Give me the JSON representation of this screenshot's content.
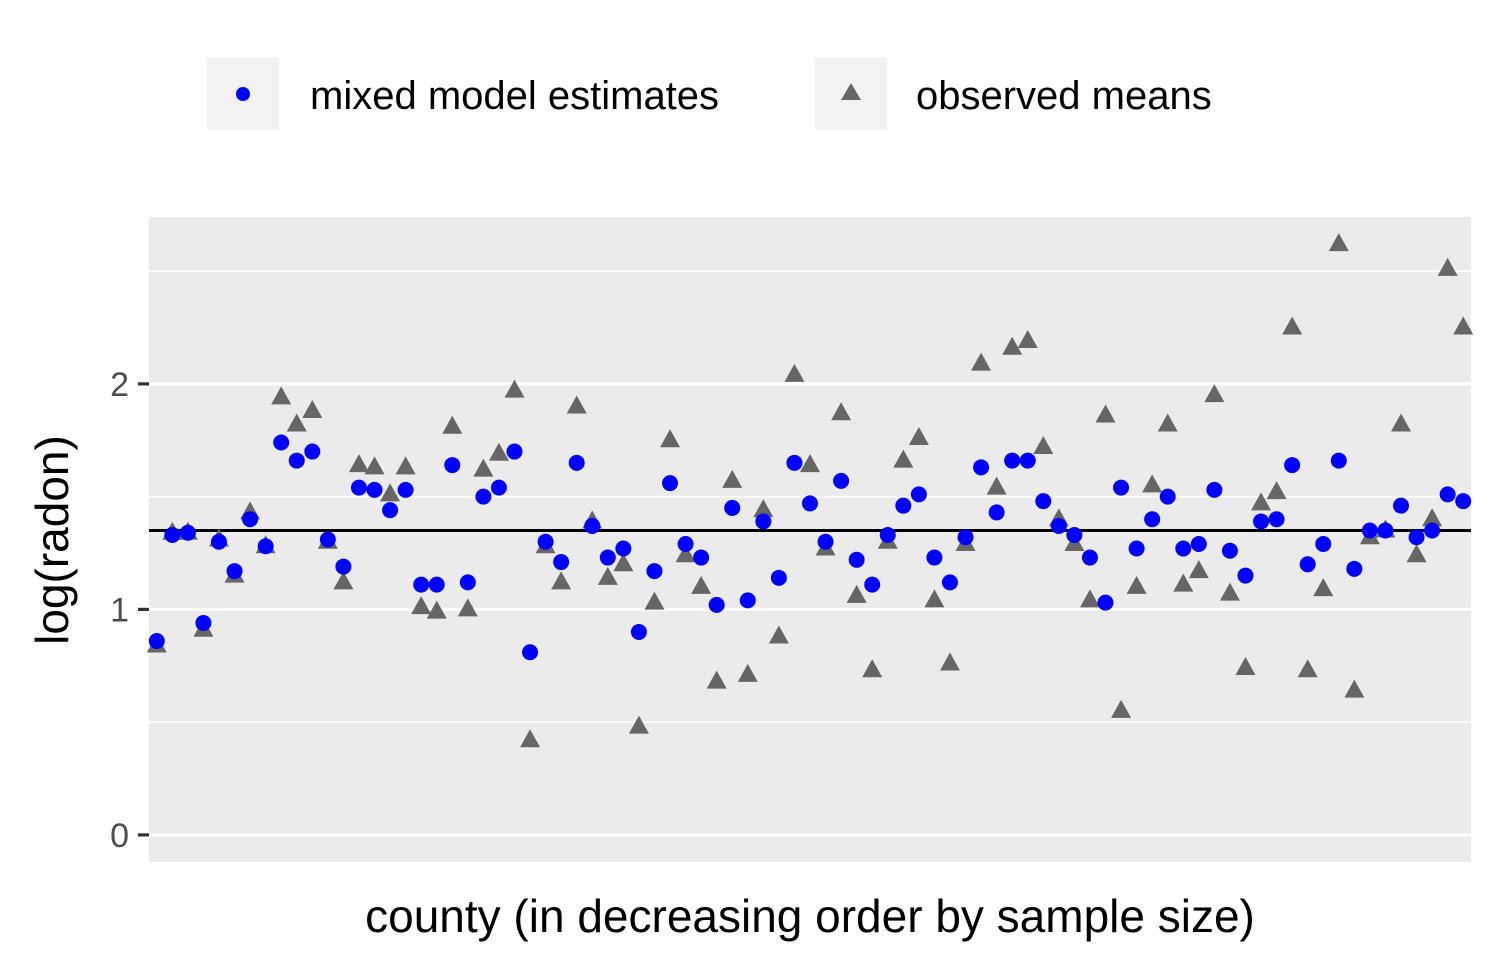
{
  "chart_data": {
    "type": "scatter",
    "xlabel": "county (in decreasing order by sample size)",
    "ylabel": "log(radon)",
    "y_ticks": [
      0,
      1,
      2
    ],
    "y_tick_labels": [
      "0",
      "1",
      "2"
    ],
    "ylim": [
      -0.12,
      2.74
    ],
    "xlim": [
      0.5,
      85.5
    ],
    "grid": true,
    "legend_position": "top",
    "reference_line": {
      "y": 1.35,
      "color": "#000000"
    },
    "series": [
      {
        "name": "mixed model estimates",
        "marker": "circle",
        "color": "#0000ff",
        "x": [
          1,
          2,
          3,
          4,
          5,
          6,
          7,
          8,
          9,
          10,
          11,
          12,
          13,
          14,
          15,
          16,
          17,
          18,
          19,
          20,
          21,
          22,
          23,
          24,
          25,
          26,
          27,
          28,
          29,
          30,
          31,
          32,
          33,
          34,
          35,
          36,
          37,
          38,
          39,
          40,
          41,
          42,
          43,
          44,
          45,
          46,
          47,
          48,
          49,
          50,
          51,
          52,
          53,
          54,
          55,
          56,
          57,
          58,
          59,
          60,
          61,
          62,
          63,
          64,
          65,
          66,
          67,
          68,
          69,
          70,
          71,
          72,
          73,
          74,
          75,
          76,
          77,
          78,
          79,
          80,
          81,
          82,
          83,
          84,
          85
        ],
        "values": [
          0.86,
          1.33,
          1.34,
          0.94,
          1.3,
          1.17,
          1.4,
          1.28,
          1.74,
          1.66,
          1.7,
          1.31,
          1.19,
          1.54,
          1.53,
          1.44,
          1.53,
          1.11,
          1.11,
          1.64,
          1.12,
          1.5,
          1.54,
          1.7,
          0.81,
          1.3,
          1.21,
          1.65,
          1.37,
          1.23,
          1.27,
          0.9,
          1.17,
          1.56,
          1.29,
          1.23,
          1.02,
          1.45,
          1.04,
          1.39,
          1.14,
          1.65,
          1.47,
          1.3,
          1.57,
          1.22,
          1.11,
          1.33,
          1.46,
          1.51,
          1.23,
          1.12,
          1.32,
          1.63,
          1.43,
          1.66,
          1.66,
          1.48,
          1.37,
          1.33,
          1.23,
          1.03,
          1.54,
          1.27,
          1.4,
          1.5,
          1.27,
          1.29,
          1.53,
          1.26,
          1.15,
          1.39,
          1.4,
          1.64,
          1.2,
          1.29,
          1.66,
          1.18,
          1.35,
          1.35,
          1.46,
          1.32,
          1.35,
          1.51,
          1.48
        ]
      },
      {
        "name": "observed means",
        "marker": "triangle",
        "color": "#666666",
        "x": [
          1,
          2,
          3,
          4,
          5,
          6,
          7,
          8,
          9,
          10,
          11,
          12,
          13,
          14,
          15,
          16,
          17,
          18,
          19,
          20,
          21,
          22,
          23,
          24,
          25,
          26,
          27,
          28,
          29,
          30,
          31,
          32,
          33,
          34,
          35,
          36,
          37,
          38,
          39,
          40,
          41,
          42,
          43,
          44,
          45,
          46,
          47,
          48,
          49,
          50,
          51,
          52,
          53,
          54,
          55,
          56,
          57,
          58,
          59,
          60,
          61,
          62,
          63,
          64,
          65,
          66,
          67,
          68,
          69,
          70,
          71,
          72,
          73,
          74,
          75,
          76,
          77,
          78,
          79,
          80,
          81,
          82,
          83,
          84,
          85
        ],
        "values": [
          0.84,
          1.34,
          1.34,
          0.91,
          1.31,
          1.15,
          1.43,
          1.28,
          1.94,
          1.82,
          1.88,
          1.3,
          1.12,
          1.64,
          1.63,
          1.51,
          1.63,
          1.01,
          0.99,
          1.81,
          1.0,
          1.62,
          1.69,
          1.97,
          0.42,
          1.28,
          1.12,
          1.9,
          1.39,
          1.14,
          1.2,
          0.48,
          1.03,
          1.75,
          1.24,
          1.1,
          0.68,
          1.57,
          0.71,
          1.44,
          0.88,
          2.04,
          1.64,
          1.27,
          1.87,
          1.06,
          0.73,
          1.3,
          1.66,
          1.76,
          1.04,
          0.76,
          1.29,
          2.09,
          1.54,
          2.16,
          2.19,
          1.72,
          1.4,
          1.29,
          1.04,
          1.86,
          0.55,
          1.1,
          1.55,
          1.82,
          1.11,
          1.17,
          1.95,
          1.07,
          0.74,
          1.47,
          1.52,
          2.25,
          0.73,
          1.09,
          2.62,
          0.64,
          1.32,
          1.35,
          1.82,
          1.24,
          1.4,
          2.51,
          2.25
        ]
      }
    ]
  }
}
